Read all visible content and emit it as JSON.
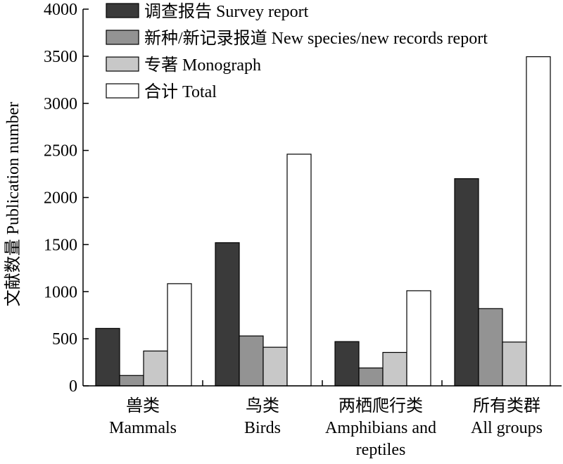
{
  "chart_data": {
    "type": "bar",
    "ylabel": "文献数量 Publication number",
    "ylim": [
      0,
      4000
    ],
    "yticks": [
      0,
      500,
      1000,
      1500,
      2000,
      2500,
      3000,
      3500,
      4000
    ],
    "categories": [
      [
        "兽类",
        "Mammals"
      ],
      [
        "鸟类",
        "Birds"
      ],
      [
        "两栖爬行类",
        "Amphibians and",
        "reptiles"
      ],
      [
        "所有类群",
        "All groups"
      ]
    ],
    "series": [
      {
        "name": "调查报告 Survey report",
        "color": "#3a3a3a",
        "values": [
          610,
          1520,
          470,
          2200
        ]
      },
      {
        "name": "新种/新记录报道 New species/new records report",
        "color": "#939393",
        "values": [
          110,
          530,
          190,
          820
        ]
      },
      {
        "name": "专著 Monograph",
        "color": "#c8c8c8",
        "values": [
          370,
          410,
          355,
          465
        ]
      },
      {
        "name": "合计 Total",
        "color": "#ffffff",
        "values": [
          1085,
          2460,
          1010,
          3495
        ]
      }
    ],
    "legend_position": "top-left",
    "grid": false
  }
}
